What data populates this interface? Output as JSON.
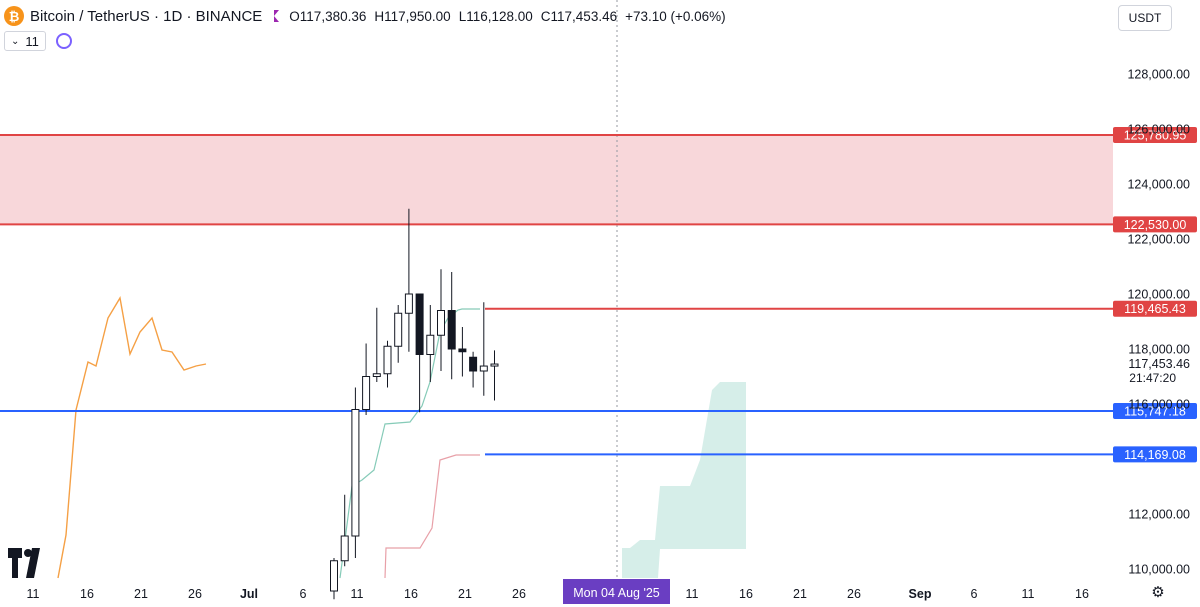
{
  "header": {
    "symbol": "Bitcoin / TetherUS · 1D · BINANCE",
    "logo_glyph": "₿",
    "open": "O117,380.36",
    "high": "H117,950.00",
    "low": "L116,128.00",
    "close": "C117,453.46",
    "change": "+73.10 (+0.06%)"
  },
  "indicator": {
    "value": "11"
  },
  "currency": "USDT",
  "price_axis": {
    "ticks": [
      "128,000.00",
      "126,000.00",
      "124,000.00",
      "122,000.00",
      "120,000.00",
      "118,000.00",
      "116,000.00",
      "112,000.00",
      "110,000.00"
    ],
    "current_price": "117,453.46",
    "countdown": "21:47:20"
  },
  "levels": [
    {
      "price": 125780.95,
      "label": "125,780.95",
      "color": "#e04444"
    },
    {
      "price": 122530.0,
      "label": "122,530.00",
      "color": "#e04444"
    },
    {
      "price": 119465.43,
      "label": "119,465.43",
      "color": "#e04444"
    },
    {
      "price": 115747.18,
      "label": "115,747.18",
      "color": "#2962ff"
    },
    {
      "price": 114169.08,
      "label": "114,169.08",
      "color": "#2962ff"
    }
  ],
  "zone": {
    "from": 122530.0,
    "to": 125780.95,
    "color": "#f8d7da"
  },
  "crosshair_date": "Mon 04 Aug '25",
  "time_axis": [
    "11",
    "16",
    "21",
    "26",
    "Jul",
    "6",
    "11",
    "16",
    "21",
    "26",
    "11",
    "16",
    "21",
    "26",
    "Sep",
    "6",
    "11",
    "16"
  ],
  "chart_data": {
    "type": "candlestick",
    "candles": [
      {
        "o": 109200,
        "h": 110400,
        "l": 108900,
        "c": 110300
      },
      {
        "o": 110300,
        "h": 112700,
        "l": 110100,
        "c": 111200
      },
      {
        "o": 111200,
        "h": 116600,
        "l": 110400,
        "c": 115800
      },
      {
        "o": 115800,
        "h": 118200,
        "l": 115600,
        "c": 117000
      },
      {
        "o": 117000,
        "h": 119500,
        "l": 116800,
        "c": 117100
      },
      {
        "o": 117100,
        "h": 118300,
        "l": 116600,
        "c": 118100
      },
      {
        "o": 118100,
        "h": 119600,
        "l": 117500,
        "c": 119300
      },
      {
        "o": 119300,
        "h": 123100,
        "l": 117900,
        "c": 120000
      },
      {
        "o": 120000,
        "h": 120000,
        "l": 115700,
        "c": 117800
      },
      {
        "o": 117800,
        "h": 119600,
        "l": 116800,
        "c": 118500
      },
      {
        "o": 118500,
        "h": 120900,
        "l": 117200,
        "c": 119400
      },
      {
        "o": 119400,
        "h": 120800,
        "l": 116900,
        "c": 118000
      },
      {
        "o": 118000,
        "h": 118800,
        "l": 117000,
        "c": 117900
      },
      {
        "o": 117700,
        "h": 117900,
        "l": 116600,
        "c": 117200
      },
      {
        "o": 117200,
        "h": 119700,
        "l": 116300,
        "c": 117380
      },
      {
        "o": 117380,
        "h": 117950,
        "l": 116128,
        "c": 117453
      }
    ]
  }
}
